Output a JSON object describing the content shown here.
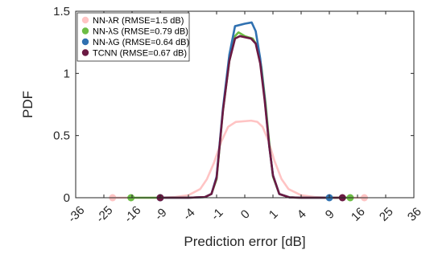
{
  "chart_data": {
    "type": "line",
    "xlabel": "Prediction error [dB]",
    "ylabel": "PDF",
    "x_tick_labels": [
      "-36",
      "-25",
      "-16",
      "-9",
      "-4",
      "-1",
      "0",
      "1",
      "4",
      "9",
      "16",
      "25",
      "36"
    ],
    "y_ticks": [
      0,
      0.5,
      1,
      1.5
    ],
    "y_tick_labels": [
      "0",
      "0.5",
      "1",
      "1.5"
    ],
    "ylim": [
      0,
      1.5
    ],
    "grid": false,
    "legend_position": "top-left",
    "x_axis_note": "piecewise scale: labels spaced evenly; value at position p (tick index offset from 0) is sign(p)*p^2",
    "series": [
      {
        "name": "NN-λR (RMSE=1.5 dB)",
        "color": "#ffc4c4",
        "points": [
          [
            -22.0,
            0
          ],
          [
            -16,
            0
          ],
          [
            -9,
            0
          ],
          [
            -6.25,
            0.005
          ],
          [
            -4,
            0.02
          ],
          [
            -2.5,
            0.07
          ],
          [
            -1.8,
            0.15
          ],
          [
            -1.2,
            0.28
          ],
          [
            -0.7,
            0.45
          ],
          [
            -0.35,
            0.57
          ],
          [
            -0.1,
            0.61
          ],
          [
            0.05,
            0.62
          ],
          [
            0.2,
            0.61
          ],
          [
            0.4,
            0.57
          ],
          [
            0.7,
            0.46
          ],
          [
            1.1,
            0.3
          ],
          [
            1.7,
            0.15
          ],
          [
            2.4,
            0.07
          ],
          [
            4,
            0.02
          ],
          [
            6.25,
            0.005
          ],
          [
            9,
            0
          ],
          [
            16,
            0
          ],
          [
            18.0,
            0
          ]
        ]
      },
      {
        "name": "NN-λS (RMSE=0.79 dB)",
        "color": "#6dbd45",
        "points": [
          [
            -16.3,
            0
          ],
          [
            -12.5,
            0
          ],
          [
            -9,
            0
          ],
          [
            -4,
            0
          ],
          [
            -2.0,
            0.005
          ],
          [
            -1.4,
            0.03
          ],
          [
            -1.0,
            0.15
          ],
          [
            -0.6,
            0.7
          ],
          [
            -0.3,
            1.1
          ],
          [
            -0.12,
            1.3
          ],
          [
            -0.05,
            1.33
          ],
          [
            0.0,
            1.3
          ],
          [
            0.08,
            1.28
          ],
          [
            0.2,
            1.22
          ],
          [
            0.35,
            1.05
          ],
          [
            0.55,
            0.75
          ],
          [
            0.8,
            0.38
          ],
          [
            1.0,
            0.17
          ],
          [
            1.5,
            0.03
          ],
          [
            2.5,
            0.003
          ],
          [
            4,
            0
          ],
          [
            9,
            0
          ],
          [
            14.0,
            0
          ]
        ]
      },
      {
        "name": "NN-λG (RMSE=0.64 dB)",
        "color": "#3071b1",
        "points": [
          [
            -9,
            0
          ],
          [
            -4,
            0
          ],
          [
            -2.0,
            0.005
          ],
          [
            -1.4,
            0.03
          ],
          [
            -1.0,
            0.17
          ],
          [
            -0.6,
            0.72
          ],
          [
            -0.3,
            1.15
          ],
          [
            -0.12,
            1.38
          ],
          [
            0.0,
            1.4
          ],
          [
            0.06,
            1.41
          ],
          [
            0.15,
            1.34
          ],
          [
            0.3,
            1.12
          ],
          [
            0.5,
            0.8
          ],
          [
            0.75,
            0.42
          ],
          [
            1.0,
            0.18
          ],
          [
            1.5,
            0.03
          ],
          [
            2.5,
            0.003
          ],
          [
            4,
            0
          ],
          [
            9,
            0
          ]
        ]
      },
      {
        "name": "TCNN (RMSE=0.67 dB)",
        "color": "#6b1a43",
        "points": [
          [
            -9,
            0
          ],
          [
            -4,
            0
          ],
          [
            -2.0,
            0.005
          ],
          [
            -1.4,
            0.03
          ],
          [
            -1.0,
            0.16
          ],
          [
            -0.6,
            0.7
          ],
          [
            -0.3,
            1.1
          ],
          [
            -0.12,
            1.28
          ],
          [
            -0.03,
            1.3
          ],
          [
            0.05,
            1.28
          ],
          [
            0.15,
            1.24
          ],
          [
            0.3,
            1.08
          ],
          [
            0.5,
            0.78
          ],
          [
            0.75,
            0.42
          ],
          [
            1.0,
            0.18
          ],
          [
            1.5,
            0.03
          ],
          [
            2.5,
            0.003
          ],
          [
            4,
            0
          ],
          [
            9,
            0
          ],
          [
            12.0,
            0
          ]
        ]
      }
    ],
    "markers": [
      {
        "series": 0,
        "x": -22.0
      },
      {
        "series": 0,
        "x": 18.0
      },
      {
        "series": 1,
        "x": -16.3
      },
      {
        "series": 1,
        "x": 14.0
      },
      {
        "series": 2,
        "x": -9.0
      },
      {
        "series": 2,
        "x": 9.0
      },
      {
        "series": 3,
        "x": -9.0
      },
      {
        "series": 3,
        "x": 12.0
      }
    ]
  }
}
